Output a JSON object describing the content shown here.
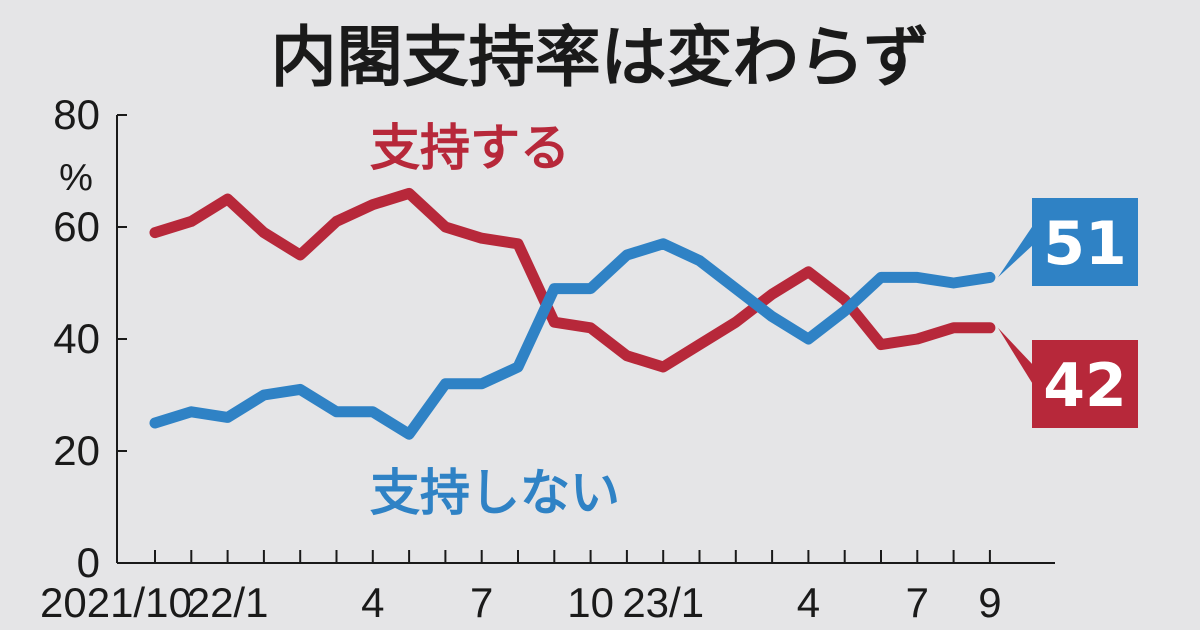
{
  "chart_data": {
    "type": "line",
    "title": "内閣支持率は変わらず",
    "ylabel": "%",
    "ylim": [
      0,
      80
    ],
    "yticks": [
      "0",
      "20",
      "40",
      "60",
      "80"
    ],
    "xtick_labels": [
      "2021/10",
      "22/1",
      "4",
      "7",
      "10",
      "23/1",
      "4",
      "7",
      "9"
    ],
    "xtick_positions": [
      0,
      2,
      6,
      9,
      12,
      14,
      18,
      21,
      23
    ],
    "num_points": 24,
    "series": [
      {
        "name": "支持する",
        "color": "#b7283a",
        "values": [
          59,
          61,
          65,
          59,
          55,
          61,
          64,
          66,
          60,
          58,
          57,
          43,
          42,
          37,
          35,
          39,
          43,
          48,
          52,
          47,
          39,
          40,
          42,
          42
        ],
        "final_label": "42"
      },
      {
        "name": "支持しない",
        "color": "#2f82c5",
        "values": [
          25,
          27,
          26,
          30,
          31,
          27,
          27,
          23,
          32,
          32,
          35,
          49,
          49,
          55,
          57,
          54,
          49,
          44,
          40,
          45,
          51,
          51,
          50,
          51
        ],
        "final_label": "51"
      }
    ]
  }
}
